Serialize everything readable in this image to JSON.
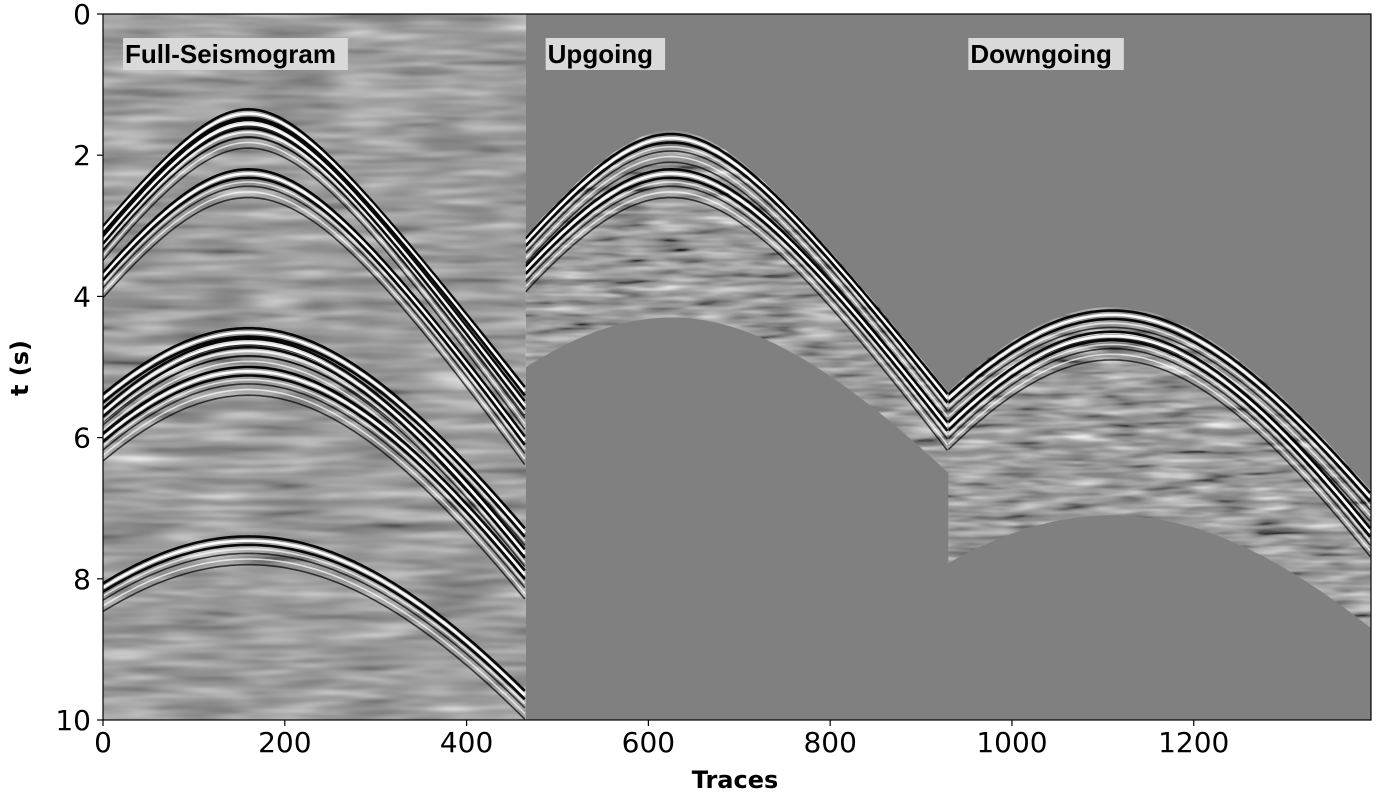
{
  "chart_data": {
    "type": "heatmap",
    "description": "Seismic shot gather wiggle-density panels",
    "xlabel": "Traces",
    "ylabel": "t (s)",
    "xlim": [
      0,
      1395
    ],
    "ylim": [
      10,
      0
    ],
    "x_ticks": [
      0,
      200,
      400,
      600,
      800,
      1000,
      1200
    ],
    "y_ticks": [
      0,
      2,
      4,
      6,
      8,
      10
    ],
    "grid": false,
    "colormap": "gray",
    "background_color": "#808080",
    "panels": [
      {
        "name": "Full-Seismogram",
        "trace_range": [
          0,
          465
        ],
        "events": [
          {
            "apex_trace": 160,
            "apex_time": 1.35,
            "end_time": 5.3
          },
          {
            "apex_trace": 160,
            "apex_time": 1.5,
            "end_time": 5.5
          },
          {
            "apex_trace": 160,
            "apex_time": 2.2,
            "end_time": 6.0
          },
          {
            "apex_trace": 160,
            "apex_time": 4.45,
            "end_time": 7.3
          },
          {
            "apex_trace": 160,
            "apex_time": 4.6,
            "end_time": 7.6
          },
          {
            "apex_trace": 160,
            "apex_time": 5.0,
            "end_time": 7.9
          },
          {
            "apex_trace": 160,
            "apex_time": 7.4,
            "end_time": 9.6
          }
        ]
      },
      {
        "name": "Upgoing",
        "trace_range": [
          465,
          930
        ],
        "events": [
          {
            "apex_trace": 625,
            "apex_time": 1.7,
            "end_time": 5.4
          },
          {
            "apex_trace": 625,
            "apex_time": 2.2,
            "end_time": 5.8
          }
        ],
        "lower_mute": {
          "apex_trace": 625,
          "apex_time": 4.3,
          "end_time": 6.5
        }
      },
      {
        "name": "Downgoing",
        "trace_range": [
          930,
          1395
        ],
        "events": [
          {
            "apex_trace": 1110,
            "apex_time": 4.2,
            "end_time": 6.8
          },
          {
            "apex_trace": 1110,
            "apex_time": 4.5,
            "end_time": 7.3
          }
        ],
        "lower_mute": {
          "apex_trace": 1110,
          "apex_time": 7.1,
          "end_time": 8.7
        }
      }
    ]
  }
}
